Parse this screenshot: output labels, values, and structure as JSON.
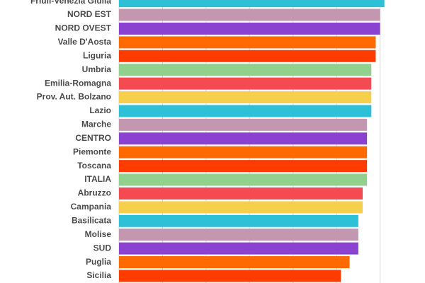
{
  "chart_data": {
    "type": "hbar",
    "categories": [
      "Friuli-Venezia Giulia",
      "NORD EST",
      "NORD OVEST",
      "Valle D'Aosta",
      "Liguria",
      "Umbria",
      "Emilia-Romagna",
      "Prov. Aut. Bolzano",
      "Lazio",
      "Marche",
      "CENTRO",
      "Piemonte",
      "Toscana",
      "ITALIA",
      "Abruzzo",
      "Campania",
      "Basilicata",
      "Molise",
      "SUD",
      "Puglia",
      "Sicilia"
    ],
    "values": [
      61,
      60,
      60,
      59,
      59,
      58,
      58,
      58,
      58,
      57,
      57,
      57,
      57,
      57,
      56,
      56,
      55,
      55,
      55,
      53,
      51
    ],
    "colors": [
      "#2ec0d6",
      "#c497b0",
      "#8b42d0",
      "#ff6a00",
      "#ff3c00",
      "#92d08e",
      "#f44a52",
      "#f6d04d"
    ],
    "xlim": [
      0,
      70
    ],
    "gridlines": [
      0,
      10,
      20,
      30,
      40,
      50,
      60
    ],
    "grid": true
  }
}
